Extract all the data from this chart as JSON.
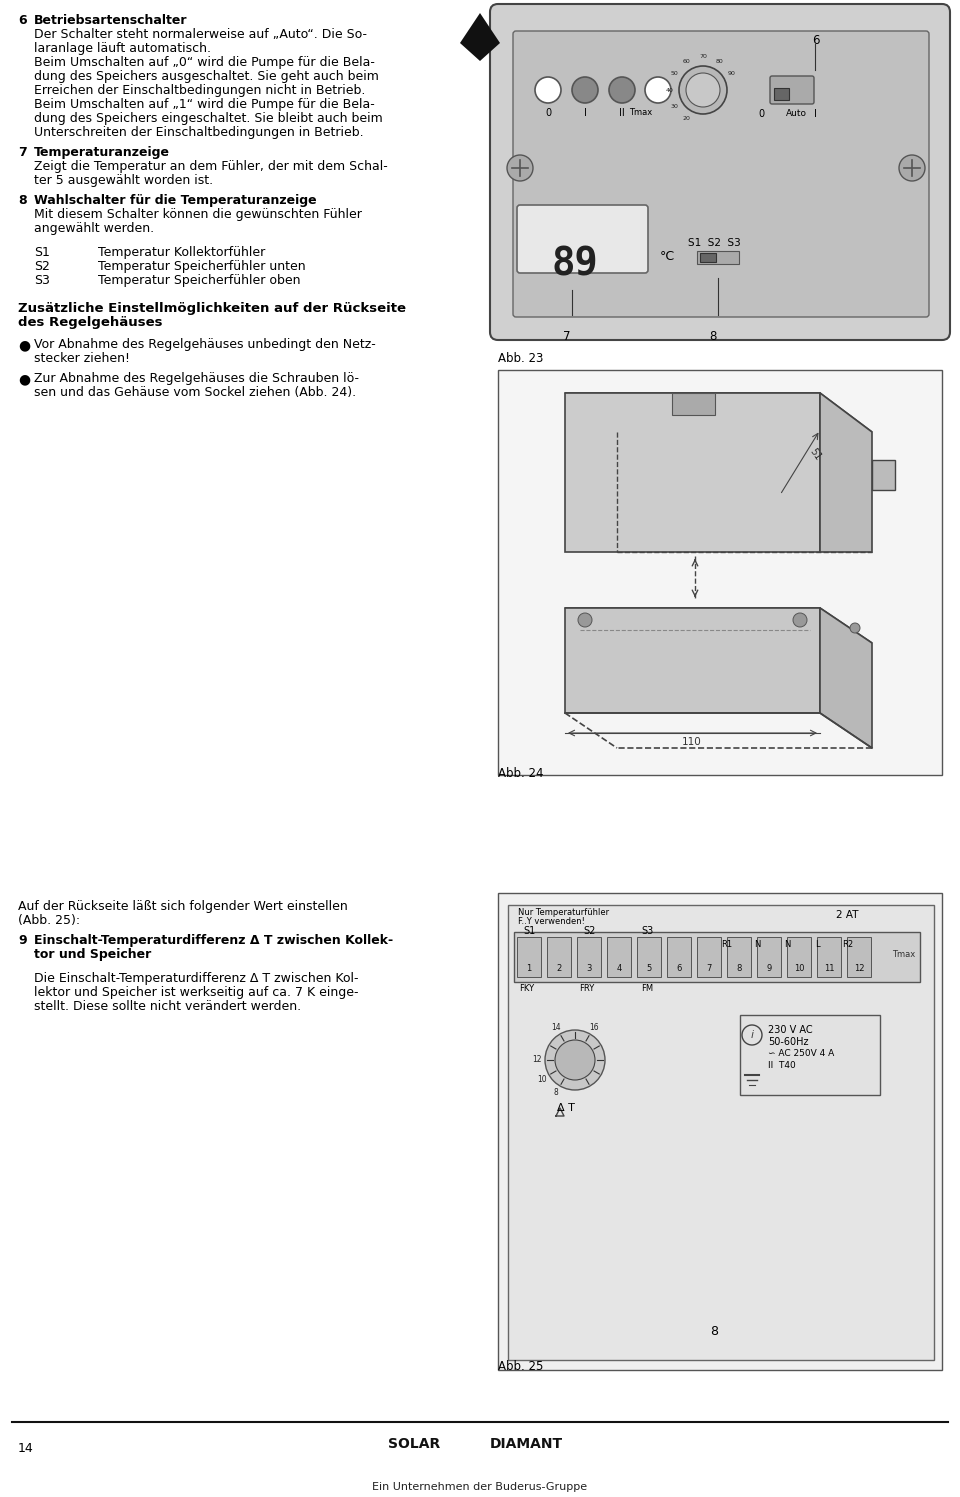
{
  "page_bg": "#ffffff",
  "text_color": "#000000",
  "page_width": 9.6,
  "page_height": 14.97,
  "content": {
    "section6_num": "6",
    "section6_header": "Betriebsartenschalter",
    "section6_lines": [
      "Der Schalter steht normalerweise auf „Auto“. Die So-",
      "laranlage läuft automatisch.",
      "Beim Umschalten auf „0“ wird die Pumpe für die Bela-",
      "dung des Speichers ausgeschaltet. Sie geht auch beim",
      "Erreichen der Einschaltbedingungen nicht in Betrieb.",
      "Beim Umschalten auf „1“ wird die Pumpe für die Bela-",
      "dung des Speichers eingeschaltet. Sie bleibt auch beim",
      "Unterschreiten der Einschaltbedingungen in Betrieb."
    ],
    "section7_num": "7",
    "section7_header": "Temperaturanzeige",
    "section7_lines": [
      "Zeigt die Temperatur an dem Fühler, der mit dem Schal-",
      "ter 5 ausgewählt worden ist."
    ],
    "section8_num": "8",
    "section8_header": "Wahlschalter für die Temperaturanzeige",
    "section8_lines": [
      "Mit diesem Schalter können die gewünschten Fühler",
      "angewählt werden."
    ],
    "s_entries": [
      [
        "S1",
        "Temperatur Kollektorfühler"
      ],
      [
        "S2",
        "Temperatur Speicherfühler unten"
      ],
      [
        "S3",
        "Temperatur Speicherfühler oben"
      ]
    ],
    "bold_header": [
      "Zusätzliche Einstellmöglichkeiten auf der Rückseite",
      "des Regelgehäuses"
    ],
    "bullets": [
      [
        "Vor Abnahme des Regelgehäuses unbedingt den Netz-",
        "stecker ziehen!"
      ],
      [
        "Zur Abnahme des Regelgehäuses die Schrauben lö-",
        "sen und das Gehäuse vom Sockel ziehen (Abb. 24)."
      ]
    ],
    "section9_intro": [
      "Auf der Rückseite läßt sich folgender Wert einstellen",
      "(Abb. 25):"
    ],
    "section9_num": "9",
    "section9_header": [
      "Einschalt-Temperaturdifferenz Δ T zwischen Kollek-",
      "tor und Speicher"
    ],
    "section9_desc": [
      "Die Einschalt-Temperaturdifferenz Δ T zwischen Kol-",
      "lektor und Speicher ist werkseitig auf ca. 7 K einge-",
      "stellt. Diese sollte nicht verändert werden."
    ],
    "abb23": "Abb. 23",
    "abb24": "Abb. 24",
    "abb25": "Abb. 25",
    "footer_pagenum": "14",
    "footer_solar": "SOLAR",
    "footer_diamant": "DIAMANT",
    "footer_sub": "Ein Unternehmen der Buderus-Gruppe"
  }
}
